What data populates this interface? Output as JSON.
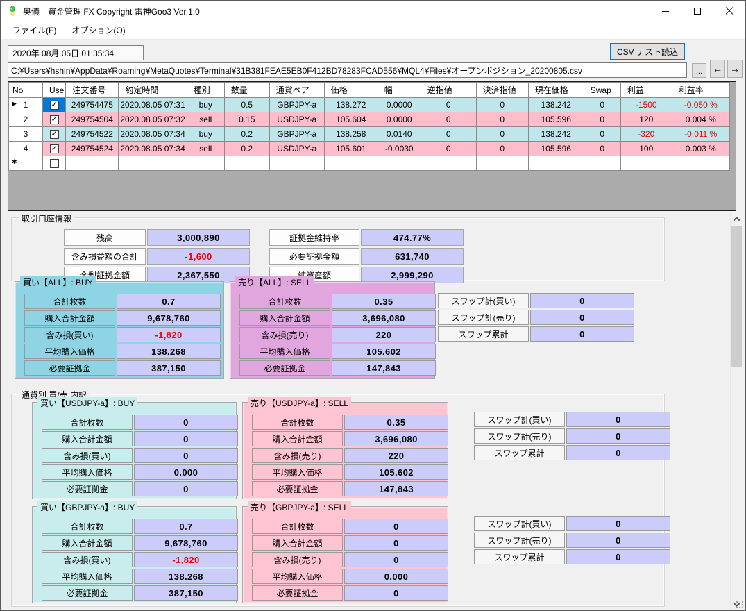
{
  "colors": {
    "buy_row": "#BFE6EA",
    "sell_row": "#FFBDCB",
    "buy_box": "#8FD4E4",
    "sell_box": "#E2A6DE",
    "buy_box_light": "#C9ECEC",
    "sell_box_light": "#FFC4D1",
    "value_bg": "#CCCCFB",
    "negative": "#F00000",
    "selected_cell": "#0078D7"
  },
  "window": {
    "title": "奥儀　資金管理 FX  Copyright 雷神Goo3  Ver.1.0"
  },
  "menu": [
    "ファイル(F)",
    "オプション(O)"
  ],
  "toolbar": {
    "datetime": "2020年 08月 05日 01:35:34",
    "csv_button": "CSV テスト読込",
    "path": "C:¥Users¥hshin¥AppData¥Roaming¥MetaQuotes¥Terminal¥31B381FEAE5EB0F412BD78283FCAD556¥MQL4¥Files¥オープンポジション_20200805.csv",
    "browse_button": "...",
    "back_button": "←",
    "forward_button": "→"
  },
  "grid": {
    "columns": [
      "No",
      "Use",
      "注文番号",
      "約定時間",
      "種別",
      "数量",
      "通貨ペア",
      "価格",
      "幅",
      "逆指値",
      "決済指値",
      "現在価格",
      "Swap",
      "利益",
      "利益率"
    ],
    "rows": [
      {
        "no": "1",
        "current": true,
        "selected_cell": true,
        "use": true,
        "side": "buy",
        "values": [
          "249754475",
          "2020.08.05 07:31",
          "buy",
          "0.5",
          "GBPJPY-a",
          "138.272",
          "0.0000",
          "0",
          "0",
          "138.242",
          "0",
          "-1500",
          "-0.050 %"
        ]
      },
      {
        "no": "2",
        "use": true,
        "side": "sell",
        "values": [
          "249754504",
          "2020.08.05 07:32",
          "sell",
          "0.15",
          "USDJPY-a",
          "105.604",
          "0.0000",
          "0",
          "0",
          "105.596",
          "0",
          "120",
          "0.004 %"
        ]
      },
      {
        "no": "3",
        "use": true,
        "side": "buy",
        "values": [
          "249754522",
          "2020.08.05 07:34",
          "buy",
          "0.2",
          "GBPJPY-a",
          "138.258",
          "0.0140",
          "0",
          "0",
          "138.242",
          "0",
          "-320",
          "-0.011 %"
        ]
      },
      {
        "no": "4",
        "use": true,
        "side": "sell",
        "values": [
          "249754524",
          "2020.08.05 07:34",
          "sell",
          "0.2",
          "USDJPY-a",
          "105.601",
          "-0.0030",
          "0",
          "0",
          "105.596",
          "0",
          "100",
          "0.003 %"
        ]
      }
    ],
    "current_row_marker": "▶",
    "new_row_marker": "✱"
  },
  "account": {
    "title": "取引口座情報",
    "rows": [
      [
        "残高",
        "3,000,890",
        "証拠金維持率",
        "474.77%"
      ],
      [
        "含み損益額の合計",
        "-1,600",
        "必要証拠金額",
        "631,740"
      ],
      [
        "余剰証拠金額",
        "2,367,550",
        "純資産額",
        "2,999,290"
      ]
    ]
  },
  "summary_all": {
    "buy": {
      "title": "買い【ALL】: BUY",
      "rows": [
        [
          "合計枚数",
          "0.7"
        ],
        [
          "購入合計金額",
          "9,678,760"
        ],
        [
          "含み損(買い)",
          "-1,820"
        ],
        [
          "平均購入価格",
          "138.268"
        ],
        [
          "必要証拠金",
          "387,150"
        ]
      ]
    },
    "sell": {
      "title": "売り【ALL】: SELL",
      "rows": [
        [
          "合計枚数",
          "0.35"
        ],
        [
          "購入合計金額",
          "3,696,080"
        ],
        [
          "含み損(売り)",
          "220"
        ],
        [
          "平均購入価格",
          "105.602"
        ],
        [
          "必要証拠金",
          "147,843"
        ]
      ]
    },
    "swap": [
      [
        "スワップ計(買い)",
        "0"
      ],
      [
        "スワップ計(売り)",
        "0"
      ],
      [
        "スワップ累計",
        "0"
      ]
    ]
  },
  "by_currency": {
    "title": "通貨別 買/売 内訳",
    "groups": [
      {
        "buy": {
          "title": "買い【USDJPY-a】: BUY",
          "rows": [
            [
              "合計枚数",
              "0"
            ],
            [
              "購入合計金額",
              "0"
            ],
            [
              "含み損(買い)",
              "0"
            ],
            [
              "平均購入価格",
              "0.000"
            ],
            [
              "必要証拠金",
              "0"
            ]
          ]
        },
        "sell": {
          "title": "売り【USDJPY-a】: SELL",
          "rows": [
            [
              "合計枚数",
              "0.35"
            ],
            [
              "購入合計金額",
              "3,696,080"
            ],
            [
              "含み損(売り)",
              "220"
            ],
            [
              "平均購入価格",
              "105.602"
            ],
            [
              "必要証拠金",
              "147,843"
            ]
          ]
        },
        "swap": [
          [
            "スワップ計(買い)",
            "0"
          ],
          [
            "スワップ計(売り)",
            "0"
          ],
          [
            "スワップ累計",
            "0"
          ]
        ]
      },
      {
        "buy": {
          "title": "買い【GBPJPY-a】: BUY",
          "rows": [
            [
              "合計枚数",
              "0.7"
            ],
            [
              "購入合計金額",
              "9,678,760"
            ],
            [
              "含み損(買い)",
              "-1,820"
            ],
            [
              "平均購入価格",
              "138.268"
            ],
            [
              "必要証拠金",
              "387,150"
            ]
          ]
        },
        "sell": {
          "title": "売り【GBPJPY-a】: SELL",
          "rows": [
            [
              "合計枚数",
              "0"
            ],
            [
              "購入合計金額",
              "0"
            ],
            [
              "含み損(売り)",
              "0"
            ],
            [
              "平均購入価格",
              "0.000"
            ],
            [
              "必要証拠金",
              "0"
            ]
          ]
        },
        "swap": [
          [
            "スワップ計(買い)",
            "0"
          ],
          [
            "スワップ計(売り)",
            "0"
          ],
          [
            "スワップ累計",
            "0"
          ]
        ]
      }
    ]
  }
}
